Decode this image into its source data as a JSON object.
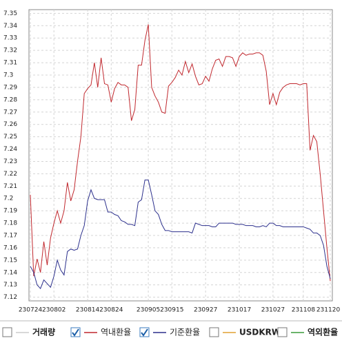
{
  "chart_data": {
    "type": "line",
    "categories": [
      "230724",
      null,
      null,
      null,
      null,
      null,
      null,
      "230802",
      null,
      null,
      null,
      null,
      null,
      null,
      null,
      null,
      null,
      "230814",
      null,
      null,
      null,
      null,
      null,
      null,
      "230824",
      null,
      null,
      null,
      null,
      null,
      null,
      null,
      null,
      null,
      null,
      "230905",
      null,
      null,
      null,
      null,
      null,
      null,
      "230915",
      null,
      null,
      null,
      null,
      null,
      null,
      null,
      null,
      null,
      "230927",
      null,
      null,
      null,
      null,
      null,
      null,
      null,
      null,
      null,
      "231017",
      null,
      null,
      null,
      null,
      null,
      null,
      null,
      null,
      null,
      "231027",
      null,
      null,
      null,
      null,
      null,
      null,
      null,
      null,
      "231108",
      null,
      null,
      null,
      null,
      null,
      null,
      null,
      "231120"
    ],
    "series": [
      {
        "name": "거래량",
        "color": "#cccccc",
        "checked": false
      },
      {
        "name": "역내환율",
        "color": "#c0272d",
        "checked": true,
        "values": [
          7.203,
          7.137,
          7.151,
          7.14,
          7.165,
          7.146,
          7.168,
          7.18,
          7.19,
          7.18,
          7.19,
          7.213,
          7.198,
          7.207,
          7.23,
          7.25,
          7.285,
          7.289,
          7.292,
          7.31,
          7.29,
          7.314,
          7.293,
          7.292,
          7.278,
          7.289,
          7.294,
          7.292,
          7.292,
          7.29,
          7.263,
          7.272,
          7.308,
          7.308,
          7.328,
          7.341,
          7.29,
          7.283,
          7.278,
          7.27,
          7.269,
          7.291,
          7.294,
          7.298,
          7.304,
          7.3,
          7.311,
          7.302,
          7.309,
          7.299,
          7.292,
          7.293,
          7.299,
          7.295,
          7.305,
          7.312,
          7.313,
          7.307,
          7.315,
          7.315,
          7.314,
          7.307,
          7.315,
          7.318,
          7.316,
          7.317,
          7.317,
          7.318,
          7.318,
          7.316,
          7.303,
          7.276,
          7.285,
          7.276,
          7.286,
          7.29,
          7.292,
          7.293,
          7.293,
          7.293,
          7.292,
          7.293,
          7.293,
          7.239,
          7.251,
          7.246,
          7.22,
          7.19,
          7.16,
          7.133
        ]
      },
      {
        "name": "기준환율",
        "color": "#2b2f8c",
        "checked": true,
        "values": [
          7.145,
          7.14,
          7.13,
          7.127,
          7.134,
          7.131,
          7.128,
          7.137,
          7.15,
          7.142,
          7.138,
          7.157,
          7.159,
          7.158,
          7.159,
          7.17,
          7.178,
          7.198,
          7.207,
          7.2,
          7.199,
          7.199,
          7.199,
          7.189,
          7.189,
          7.187,
          7.186,
          7.182,
          7.181,
          7.179,
          7.179,
          7.178,
          7.197,
          7.199,
          7.215,
          7.215,
          7.203,
          7.19,
          7.187,
          7.179,
          7.174,
          7.174,
          7.173,
          7.173,
          7.173,
          7.173,
          7.173,
          7.173,
          7.172,
          7.18,
          7.179,
          7.178,
          7.178,
          7.178,
          7.177,
          7.177,
          7.18,
          7.18,
          7.18,
          7.18,
          7.18,
          7.179,
          7.179,
          7.179,
          7.178,
          7.178,
          7.178,
          7.177,
          7.177,
          7.178,
          7.177,
          7.18,
          7.18,
          7.178,
          7.178,
          7.177,
          7.177,
          7.177,
          7.177,
          7.177,
          7.177,
          7.177,
          7.176,
          7.175,
          7.172,
          7.172,
          7.17,
          7.162,
          7.145,
          7.135
        ]
      },
      {
        "name": "USDKRW",
        "color": "#e0a030",
        "checked": false
      },
      {
        "name": "역외환율",
        "color": "#3a9a3a",
        "checked": false
      }
    ],
    "ylim": [
      7.117,
      7.353
    ],
    "yticks": [
      7.12,
      7.13,
      7.14,
      7.15,
      7.16,
      7.17,
      7.18,
      7.19,
      {
        "value": 7.2,
        "label": "7.2"
      },
      7.21,
      7.22,
      7.23,
      7.24,
      7.25,
      7.26,
      7.27,
      7.28,
      7.29,
      {
        "value": 7.3,
        "label": "7.3"
      },
      7.31,
      7.32,
      7.33,
      7.34,
      7.35
    ],
    "grid": true
  }
}
